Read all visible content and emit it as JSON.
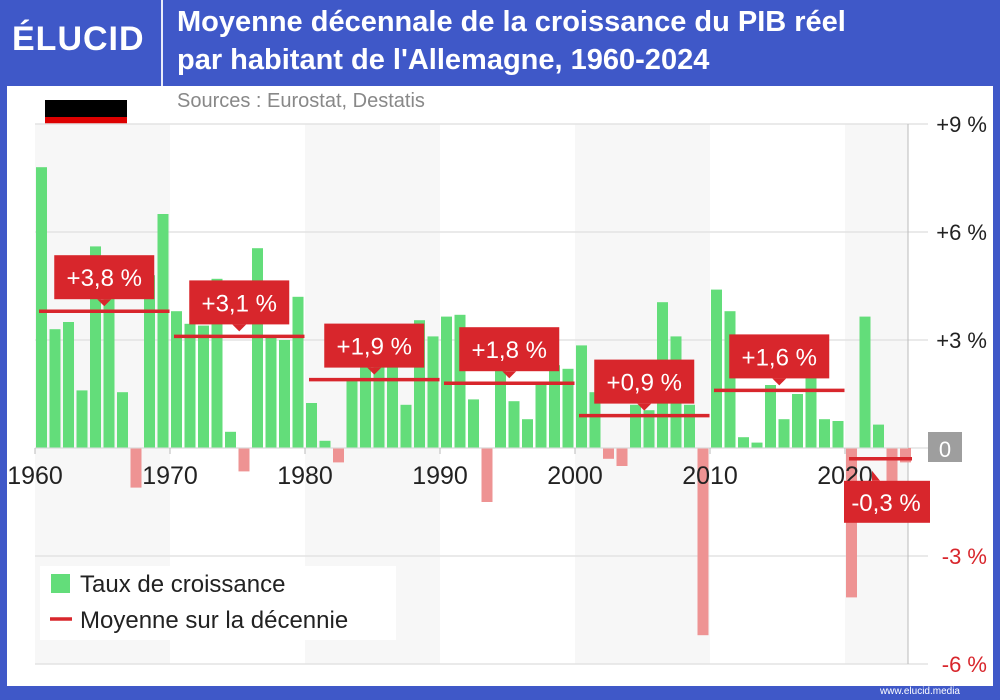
{
  "header": {
    "logo": "ÉLUCID",
    "title_line1": "Moyenne décennale de la croissance du PIB réel",
    "title_line2": "par habitant de l'Allemagne, 1960-2024",
    "sources": "Sources : Eurostat, Destatis"
  },
  "footer": {
    "url": "www.elucid.media"
  },
  "flag": {
    "country": "Germany",
    "colors": [
      "#000000",
      "#dd0000",
      "#ffce00"
    ]
  },
  "colors": {
    "positive": "#63dd7a",
    "negative": "#ee9393",
    "average": "#d8262c",
    "brand": "#3f58c8"
  },
  "chart_data": {
    "type": "bar",
    "title": "Moyenne décennale de la croissance du PIB réel par habitant de l'Allemagne, 1960-2024",
    "x": [
      1960,
      1961,
      1962,
      1963,
      1964,
      1965,
      1966,
      1967,
      1968,
      1969,
      1970,
      1971,
      1972,
      1973,
      1974,
      1975,
      1976,
      1977,
      1978,
      1979,
      1980,
      1981,
      1982,
      1983,
      1984,
      1985,
      1986,
      1987,
      1988,
      1989,
      1990,
      1991,
      1992,
      1993,
      1994,
      1995,
      1996,
      1997,
      1998,
      1999,
      2000,
      2001,
      2002,
      2003,
      2004,
      2005,
      2006,
      2007,
      2008,
      2009,
      2010,
      2011,
      2012,
      2013,
      2014,
      2015,
      2016,
      2017,
      2018,
      2019,
      2020,
      2021,
      2022,
      2023,
      2024
    ],
    "series": [
      {
        "name": "Taux de croissance",
        "values": [
          7.8,
          3.3,
          3.5,
          1.6,
          5.6,
          4.5,
          1.55,
          -1.1,
          4.8,
          6.5,
          3.8,
          3.45,
          3.4,
          4.7,
          0.45,
          -0.65,
          5.55,
          3.1,
          3.0,
          4.2,
          1.25,
          0.2,
          -0.4,
          1.9,
          2.9,
          2.4,
          2.9,
          1.2,
          3.55,
          3.1,
          3.65,
          3.7,
          1.35,
          -1.5,
          2.4,
          1.3,
          0.8,
          1.8,
          2.3,
          2.2,
          2.85,
          1.55,
          -0.3,
          -0.5,
          1.2,
          1.05,
          4.05,
          3.1,
          1.2,
          -5.2,
          4.4,
          3.8,
          0.3,
          0.15,
          1.75,
          0.8,
          1.5,
          2.0,
          0.8,
          0.75,
          -4.15,
          3.65,
          0.65,
          -1.0,
          -0.4
        ]
      },
      {
        "name": "Moyenne sur la décennie",
        "decades": [
          {
            "start": 1960,
            "end": 1969,
            "value": 3.8,
            "label": "+3,8 %"
          },
          {
            "start": 1970,
            "end": 1979,
            "value": 3.1,
            "label": "+3,1 %"
          },
          {
            "start": 1980,
            "end": 1989,
            "value": 1.9,
            "label": "+1,9 %"
          },
          {
            "start": 1990,
            "end": 1999,
            "value": 1.8,
            "label": "+1,8 %"
          },
          {
            "start": 2000,
            "end": 2009,
            "value": 0.9,
            "label": "+0,9 %"
          },
          {
            "start": 2010,
            "end": 2019,
            "value": 1.6,
            "label": "+1,6 %"
          },
          {
            "start": 2020,
            "end": 2024,
            "value": -0.3,
            "label": "-0,3 %"
          }
        ]
      }
    ],
    "ylim": [
      -6,
      9
    ],
    "yticks": [
      {
        "v": 9,
        "label": "+9 %"
      },
      {
        "v": 6,
        "label": "+6 %"
      },
      {
        "v": 3,
        "label": "+3 %"
      },
      {
        "v": 0,
        "label": "0"
      },
      {
        "v": -3,
        "label": "-3 %"
      },
      {
        "v": -6,
        "label": "-6 %"
      }
    ],
    "xticks": [
      {
        "v": 1960,
        "label": "1960"
      },
      {
        "v": 1970,
        "label": "1970"
      },
      {
        "v": 1980,
        "label": "1980"
      },
      {
        "v": 1990,
        "label": "1990"
      },
      {
        "v": 2000,
        "label": "2000"
      },
      {
        "v": 2010,
        "label": "2010"
      },
      {
        "v": 2020,
        "label": "2020"
      }
    ],
    "grid": true,
    "legend": {
      "placement": "bottom-left",
      "entries": [
        "Taux de croissance",
        "Moyenne sur la décennie"
      ]
    }
  }
}
